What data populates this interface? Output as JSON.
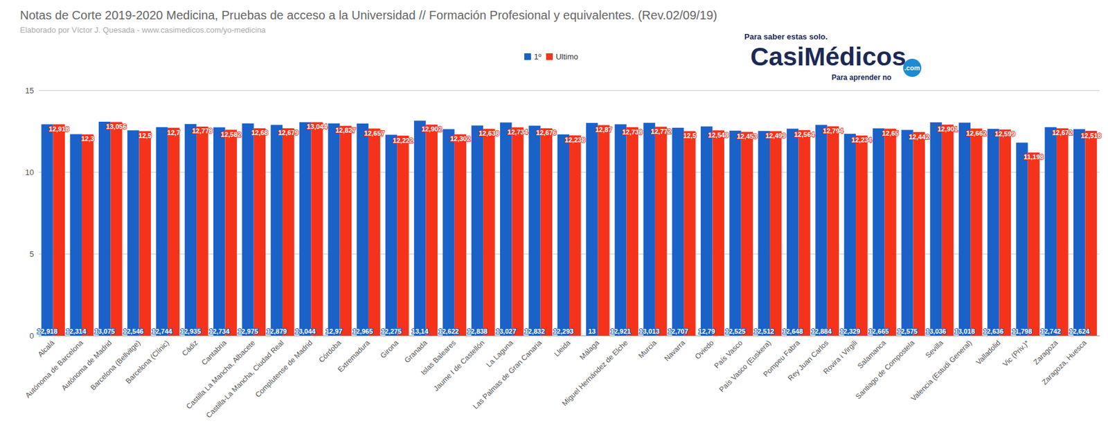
{
  "chart_data": {
    "type": "bar",
    "title": "Notas de Corte 2019-2020 Medicina, Pruebas de acceso a la Universidad // Formación Profesional y equivalentes. (Rev.02/09/19)",
    "subtitle": "Elaborado por Víctor J. Quesada - www.casimedicos.com/yo-medicina",
    "annotations": [
      "Para saber estas solo.",
      "CasiMédicos",
      ".com",
      "Para aprender no"
    ],
    "categories": [
      "Alcalá",
      "Autónoma de Barcelona",
      "Autónoma de Madrid",
      "Barcelona (Bellvitge)",
      "Barcelona (Clínic)",
      "Cádiz",
      "Cantabria",
      "Castilla La Mancha, Albacete",
      "Castilla-La Mancha, Ciudad Real",
      "Complutense de Madrid",
      "Córdoba",
      "Extremadura",
      "Girona",
      "Granada",
      "Islas Baleares",
      "Jaume I de Castellón",
      "La Laguna",
      "Las Palmas de Gran Canaria",
      "Lleida",
      "Málaga",
      "Miguel Hernández de Elche",
      "Murcia",
      "Navarra",
      "Oviedo",
      "País Vasco",
      "País Vasco (Euskera)",
      "Pompeu Fabra",
      "Rey Juan Carlos",
      "Rovira i Virgili",
      "Salamanca",
      "Santiago de Compostela",
      "Sevilla",
      "Valencia (Estudi General)",
      "Valladolid",
      "Vic (Priv.)*",
      "Zaragoza",
      "Zaragoza, Huesca"
    ],
    "series": [
      {
        "name": "1º",
        "color": "#1a62c8",
        "values": [
          12.918,
          12.314,
          13.075,
          12.546,
          12.744,
          12.935,
          12.734,
          12.975,
          12.879,
          13.044,
          12.97,
          12.965,
          12.275,
          13.14,
          12.622,
          12.838,
          13.027,
          12.832,
          12.293,
          13,
          12.921,
          13.013,
          12.707,
          12.79,
          12.525,
          12.512,
          12.648,
          12.884,
          12.329,
          12.665,
          12.575,
          13.036,
          13.018,
          12.636,
          11.798,
          12.742,
          12.624
        ],
        "value_labels": [
          "12,918",
          "12,314",
          "13,075",
          "12,546",
          "12,744",
          "12,935",
          "12,734",
          "12,975",
          "12,879",
          "13,044",
          "12,97",
          "12,965",
          "12,275",
          "13,14",
          "12,622",
          "12,838",
          "13,027",
          "12,832",
          "12,293",
          "13",
          "12,921",
          "13,013",
          "12,707",
          "12,79",
          "12,525",
          "12,512",
          "12,648",
          "12,884",
          "12,329",
          "12,665",
          "12,575",
          "13,036",
          "13,018",
          "12,636",
          "11,798",
          "12,742",
          "12,624"
        ]
      },
      {
        "name": "Ultimo",
        "color": "#f5331b",
        "values": [
          12.918,
          12.3,
          13.056,
          12.5,
          12.7,
          12.778,
          12.582,
          12.68,
          12.679,
          13.044,
          12.827,
          12.657,
          12.222,
          12.902,
          12.302,
          12.638,
          12.734,
          12.676,
          12.238,
          12.87,
          12.738,
          12.772,
          12.5,
          12.548,
          12.453,
          12.499,
          12.564,
          12.794,
          12.234,
          12.65,
          12.442,
          12.901,
          12.662,
          12.599,
          11.198,
          12.672,
          12.518
        ],
        "value_labels": [
          "12,918",
          "12,3",
          "13,056",
          "12,5",
          "12,7",
          "12,778",
          "12,582",
          "12,68",
          "12,679",
          "13,044",
          "12,827",
          "12,657",
          "12,222",
          "12,902",
          "12,302",
          "12,638",
          "12,734",
          "12,676",
          "12,238",
          "12,87",
          "12,738",
          "12,772",
          "12,5",
          "12,548",
          "12,453",
          "12,499",
          "12,564",
          "12,794",
          "12,234",
          "12,65",
          "12,442",
          "12,901",
          "12,662",
          "12,599",
          "11,198",
          "12,672",
          "12,518"
        ]
      }
    ],
    "ylim": [
      0,
      15
    ],
    "yticks": [
      0,
      5,
      10,
      15
    ],
    "grid": true,
    "legend": "top",
    "data_labels": true
  }
}
